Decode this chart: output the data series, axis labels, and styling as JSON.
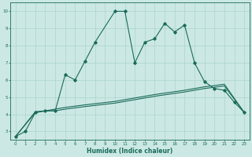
{
  "title": "",
  "xlabel": "Humidex (Indice chaleur)",
  "ylabel": "",
  "bg_color": "#cce8e4",
  "line_color": "#1a6b5a",
  "grid_color": "#aad4cc",
  "xlim": [
    -0.5,
    23.5
  ],
  "ylim": [
    2.5,
    10.5
  ],
  "xticks": [
    0,
    1,
    2,
    3,
    4,
    5,
    6,
    7,
    8,
    9,
    10,
    11,
    12,
    13,
    14,
    15,
    16,
    17,
    18,
    19,
    20,
    21,
    22,
    23
  ],
  "yticks": [
    3,
    4,
    5,
    6,
    7,
    8,
    9,
    10
  ],
  "series1_x": [
    0,
    1,
    2,
    3,
    4,
    5,
    6,
    7,
    8,
    10,
    11,
    12,
    13,
    14,
    15,
    16,
    17,
    18,
    19,
    20,
    21,
    22,
    23
  ],
  "series1_y": [
    2.7,
    3.0,
    4.1,
    4.2,
    4.2,
    6.3,
    6.0,
    7.1,
    8.2,
    10.0,
    10.0,
    7.0,
    8.2,
    8.4,
    9.3,
    8.8,
    9.2,
    7.0,
    5.9,
    5.5,
    5.4,
    4.7,
    4.1
  ],
  "series2_x": [
    0,
    2,
    3,
    4,
    5,
    7,
    10,
    12,
    14,
    17,
    19,
    21,
    23
  ],
  "series2_y": [
    2.7,
    4.15,
    4.2,
    4.3,
    4.4,
    4.55,
    4.75,
    4.95,
    5.15,
    5.4,
    5.6,
    5.75,
    4.1
  ],
  "series3_x": [
    0,
    2,
    3,
    4,
    5,
    7,
    10,
    12,
    14,
    17,
    19,
    21,
    23
  ],
  "series3_y": [
    2.7,
    4.1,
    4.2,
    4.2,
    4.3,
    4.45,
    4.65,
    4.85,
    5.05,
    5.3,
    5.5,
    5.65,
    4.1
  ]
}
